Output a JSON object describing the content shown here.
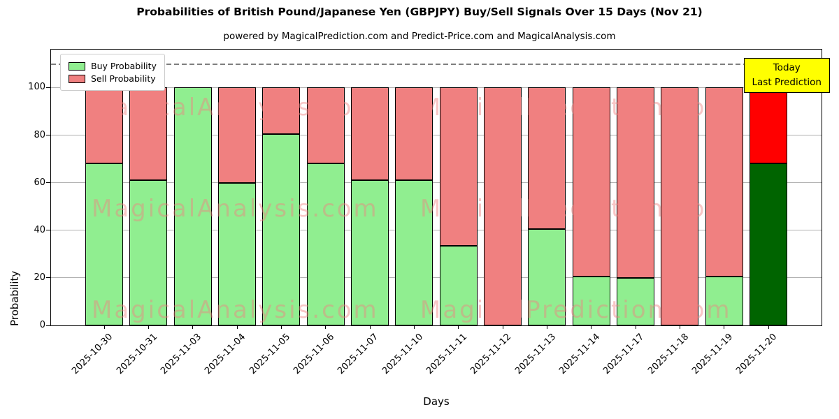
{
  "chart_data": {
    "type": "bar",
    "stacked": true,
    "title": "Probabilities of British Pound/Japanese Yen (GBPJPY) Buy/Sell Signals Over 15 Days (Nov 21)",
    "subtitle": "powered by MagicalPrediction.com and Predict-Price.com and MagicalAnalysis.com",
    "xlabel": "Days",
    "ylabel": "Probability",
    "categories": [
      "2025-10-30",
      "2025-10-31",
      "2025-11-03",
      "2025-11-04",
      "2025-11-05",
      "2025-11-06",
      "2025-11-07",
      "2025-11-10",
      "2025-11-11",
      "2025-11-12",
      "2025-11-13",
      "2025-11-14",
      "2025-11-17",
      "2025-11-18",
      "2025-11-19",
      "2025-11-20"
    ],
    "series": [
      {
        "name": "Buy Probability",
        "color": "#90EE90",
        "values": [
          68,
          61,
          100,
          60,
          80.5,
          68,
          61,
          61,
          33.5,
          0,
          40.5,
          20.5,
          20,
          0,
          20.5,
          68
        ]
      },
      {
        "name": "Sell Probability",
        "color": "#F08080",
        "values": [
          32,
          39,
          0,
          40,
          19.5,
          32,
          39,
          39,
          66.5,
          100,
          59.5,
          79.5,
          80,
          100,
          79.5,
          32
        ]
      }
    ],
    "highlight_last": {
      "buy_color": "#006400",
      "sell_color": "#FF0000"
    },
    "ylim": [
      0,
      116
    ],
    "yticks": [
      0,
      20,
      40,
      60,
      80,
      100
    ],
    "dashed_line_y": 110,
    "grid": true,
    "legend_position": "upper-left",
    "annotation": {
      "lines": [
        "Today",
        "Last Prediction"
      ],
      "bg": "#FFFF00"
    }
  },
  "watermarks": {
    "texts": [
      "MagicalAnalysis.com",
      "MagicalPrediction.com"
    ]
  }
}
